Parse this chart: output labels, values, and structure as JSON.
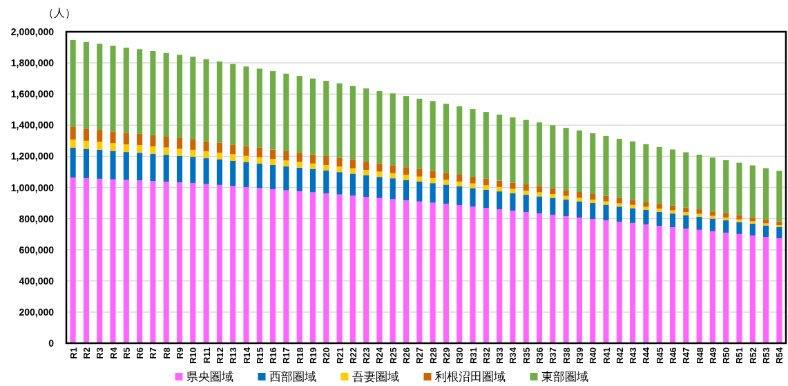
{
  "chart_data": {
    "type": "bar",
    "stacked": true,
    "ylabel": "（人）",
    "categories": [
      "R1",
      "R2",
      "R3",
      "R4",
      "R5",
      "R6",
      "R7",
      "R8",
      "R9",
      "R10",
      "R11",
      "R12",
      "R13",
      "R14",
      "R15",
      "R16",
      "R17",
      "R18",
      "R19",
      "R20",
      "R21",
      "R22",
      "R23",
      "R24",
      "R25",
      "R26",
      "R27",
      "R28",
      "R29",
      "R30",
      "R31",
      "R32",
      "R33",
      "R34",
      "R35",
      "R36",
      "R37",
      "R38",
      "R39",
      "R40",
      "R41",
      "R42",
      "R43",
      "R44",
      "R45",
      "R46",
      "R47",
      "R48",
      "R49",
      "R50",
      "R51",
      "R52",
      "R53",
      "R54"
    ],
    "series": [
      {
        "name": "県央圏域",
        "color": "#ff66ff",
        "values": [
          1064000,
          1060000,
          1056000,
          1052000,
          1048000,
          1045000,
          1041000,
          1037000,
          1033000,
          1029000,
          1022000,
          1016000,
          1009000,
          1002000,
          996000,
          989000,
          982000,
          976000,
          969000,
          962000,
          955000,
          947000,
          940000,
          932000,
          925000,
          917000,
          910000,
          902000,
          895000,
          887000,
          878000,
          869000,
          860000,
          851000,
          842000,
          834000,
          825000,
          816000,
          807000,
          798000,
          789000,
          780000,
          772000,
          763000,
          754000,
          745000,
          736000,
          728000,
          719000,
          710000,
          701000,
          692000,
          683000,
          674000
        ]
      },
      {
        "name": "西部圏域",
        "color": "#0070c0",
        "values": [
          191000,
          188000,
          186000,
          183000,
          180000,
          178000,
          175000,
          173000,
          170000,
          168000,
          166000,
          164000,
          162000,
          160000,
          158000,
          155000,
          153000,
          151000,
          149000,
          147000,
          144000,
          142000,
          139000,
          136000,
          134000,
          131000,
          128000,
          126000,
          123000,
          120000,
          118000,
          116000,
          115000,
          113000,
          111000,
          109000,
          107000,
          106000,
          104000,
          102000,
          100000,
          97000,
          95000,
          93000,
          90000,
          88000,
          86000,
          84000,
          81000,
          79000,
          77000,
          75000,
          73000,
          71000
        ]
      },
      {
        "name": "吾妻圏域",
        "color": "#ffcc00",
        "values": [
          53000,
          52000,
          51000,
          50000,
          49000,
          49000,
          48000,
          47000,
          46000,
          45000,
          44000,
          43000,
          42000,
          41000,
          40000,
          39000,
          38000,
          37000,
          36000,
          35000,
          35000,
          34000,
          34000,
          34000,
          33000,
          33000,
          32000,
          32000,
          31000,
          31000,
          30000,
          29000,
          28000,
          27000,
          27000,
          26000,
          25000,
          24000,
          23000,
          22000,
          22000,
          21000,
          21000,
          20000,
          20000,
          20000,
          19000,
          19000,
          18000,
          18000,
          17000,
          16000,
          14000,
          13000
        ]
      },
      {
        "name": "利根沼田圏域",
        "color": "#cc6600",
        "values": [
          80000,
          78000,
          77000,
          75000,
          74000,
          72000,
          71000,
          69000,
          68000,
          66000,
          65000,
          64000,
          63000,
          62000,
          62000,
          61000,
          60000,
          59000,
          58000,
          58000,
          56000,
          55000,
          53000,
          52000,
          51000,
          49000,
          48000,
          47000,
          45000,
          44000,
          43000,
          42000,
          41000,
          40000,
          40000,
          39000,
          38000,
          37000,
          37000,
          36000,
          35000,
          34000,
          33000,
          32000,
          31000,
          30000,
          29000,
          29000,
          28000,
          27000,
          27000,
          26000,
          26000,
          25000
        ]
      },
      {
        "name": "東部圏域",
        "color": "#70ad47",
        "values": [
          559000,
          556000,
          553000,
          550000,
          547000,
          544000,
          541000,
          538000,
          535000,
          532000,
          527000,
          522000,
          517000,
          512000,
          507000,
          503000,
          498000,
          493000,
          488000,
          483000,
          479000,
          474000,
          470000,
          465000,
          461000,
          457000,
          452000,
          448000,
          443000,
          439000,
          434000,
          429000,
          424000,
          419000,
          414000,
          410000,
          405000,
          400000,
          395000,
          390000,
          385000,
          380000,
          375000,
          370000,
          365000,
          361000,
          356000,
          351000,
          346000,
          341000,
          337000,
          333000,
          328000,
          324000
        ]
      }
    ],
    "ylim": [
      0,
      2000000
    ],
    "yticks": [
      {
        "value": 0,
        "label": "0"
      },
      {
        "value": 200000,
        "label": "200,000"
      },
      {
        "value": 400000,
        "label": "400,000"
      },
      {
        "value": 600000,
        "label": "600,000"
      },
      {
        "value": 800000,
        "label": "800,000"
      },
      {
        "value": 1000000,
        "label": "1,000,000"
      },
      {
        "value": 1200000,
        "label": "1,200,000"
      },
      {
        "value": 1400000,
        "label": "1,400,000"
      },
      {
        "value": 1600000,
        "label": "1,600,000"
      },
      {
        "value": 1800000,
        "label": "1,800,000"
      },
      {
        "value": 2000000,
        "label": "2,000,000"
      }
    ],
    "grid": "y",
    "legend": "bottom"
  }
}
